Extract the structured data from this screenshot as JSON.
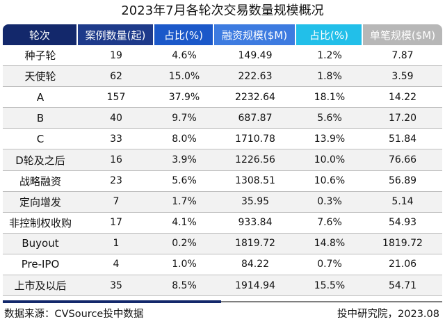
{
  "title": "2023年7月各轮次交易数量规模概况",
  "columns": [
    "轮次",
    "案例数量(起)",
    "占比(%)",
    "融资规模($M)",
    "占比(%)",
    "单笔规模($M)"
  ],
  "header_colors": [
    "#13286b",
    "#1e3a8a",
    "#1b58c9",
    "#3d7be0",
    "#22bfe9",
    "#b7b7b7"
  ],
  "rows": [
    [
      "种子轮",
      "19",
      "4.6%",
      "149.49",
      "1.2%",
      "7.87"
    ],
    [
      "天使轮",
      "62",
      "15.0%",
      "222.63",
      "1.8%",
      "3.59"
    ],
    [
      "A",
      "157",
      "37.9%",
      "2232.64",
      "18.1%",
      "14.22"
    ],
    [
      "B",
      "40",
      "9.7%",
      "687.87",
      "5.6%",
      "17.20"
    ],
    [
      "C",
      "33",
      "8.0%",
      "1710.78",
      "13.9%",
      "51.84"
    ],
    [
      "D轮及之后",
      "16",
      "3.9%",
      "1226.56",
      "10.0%",
      "76.66"
    ],
    [
      "战略融资",
      "23",
      "5.6%",
      "1308.51",
      "10.6%",
      "56.89"
    ],
    [
      "定向增发",
      "7",
      "1.7%",
      "35.95",
      "0.3%",
      "5.14"
    ],
    [
      "非控制权收购",
      "17",
      "4.1%",
      "933.84",
      "7.6%",
      "54.93"
    ],
    [
      "Buyout",
      "1",
      "0.2%",
      "1819.72",
      "14.8%",
      "1819.72"
    ],
    [
      "Pre-IPO",
      "4",
      "1.0%",
      "84.22",
      "0.7%",
      "21.06"
    ],
    [
      "上市及以后",
      "35",
      "8.5%",
      "1914.94",
      "15.5%",
      "54.71"
    ]
  ],
  "footer": {
    "source": "数据来源：CVSource投中数据",
    "credit": "投中研究院，2023.08"
  }
}
